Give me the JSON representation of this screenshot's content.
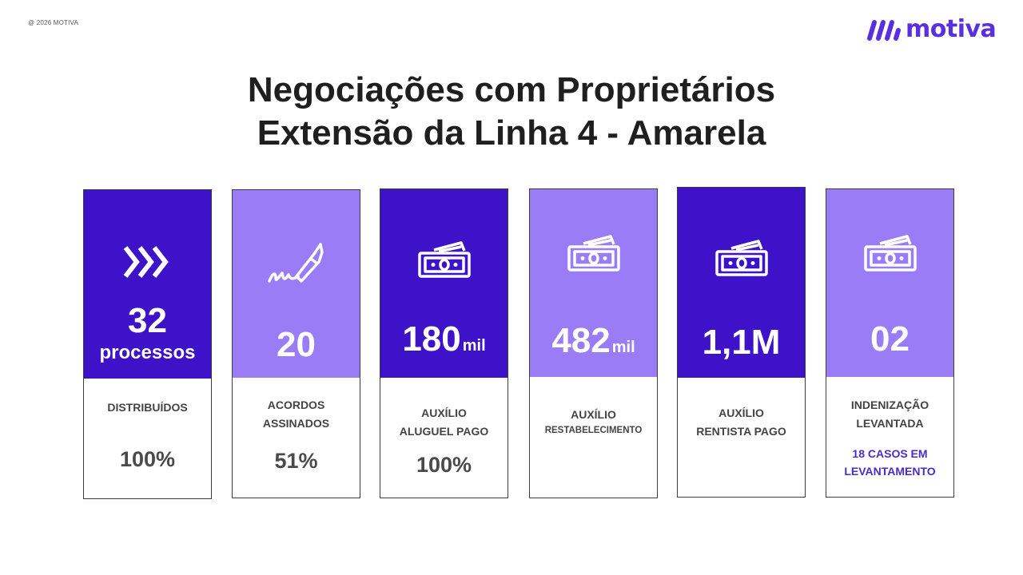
{
  "header": {
    "copyright": "@ 2026 MOTIVA",
    "logo_text": "motiva"
  },
  "title": {
    "line1": "Negociações com Proprietários",
    "line2": "Extensão da Linha 4 - Amarela"
  },
  "colors": {
    "dark_purple": "#3d12c9",
    "light_purple": "#9a7cf6",
    "brand": "#5a2fe0",
    "note": "#4a2bd0"
  },
  "cards": [
    {
      "icon": "triple-chevron-icon",
      "value": "32",
      "unit": "processos",
      "label_line1": "DISTRIBUÍDOS",
      "label_line2": "",
      "percent": "100%",
      "note_line1": "",
      "note_line2": ""
    },
    {
      "icon": "signature-pen-icon",
      "value": "20",
      "label_line1": "ACORDOS",
      "label_line2": "ASSINADOS",
      "percent": "51%"
    },
    {
      "icon": "cash-icon",
      "value": "180",
      "value_suffix": "mil",
      "label_line1": "AUXÍLIO",
      "label_line2": "ALUGUEL PAGO",
      "percent": "100%"
    },
    {
      "icon": "cash-icon",
      "value": "482",
      "value_suffix": "mil",
      "label_line1": "AUXÍLIO",
      "label_line2": "RESTABELECIMENTO"
    },
    {
      "icon": "cash-icon",
      "value": "1,1M",
      "label_line1": "AUXÍLIO",
      "label_line2": "RENTISTA PAGO"
    },
    {
      "icon": "cash-icon",
      "value": "02",
      "label_line1": "INDENIZAÇÃO",
      "label_line2": "LEVANTADA",
      "note_line1": "18 CASOS EM",
      "note_line2": "LEVANTAMENTO"
    }
  ]
}
